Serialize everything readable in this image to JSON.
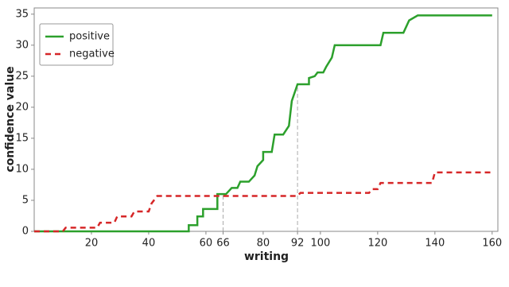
{
  "chart_data": {
    "type": "line",
    "xlabel": "writing",
    "ylabel": "confidence value",
    "xlim": [
      0,
      162
    ],
    "ylim": [
      0,
      36
    ],
    "xticks": [
      20,
      40,
      60,
      66,
      80,
      92,
      100,
      120,
      140,
      160
    ],
    "yticks": [
      0,
      5,
      10,
      15,
      20,
      25,
      30,
      35
    ],
    "guides": [
      66,
      92
    ],
    "legend": "upper-left",
    "series": [
      {
        "name": "positive",
        "color": "#2ca02c",
        "dash": false,
        "x": [
          0,
          54,
          54,
          57,
          57,
          59,
          59,
          64,
          64,
          67,
          69,
          71,
          72,
          75,
          77,
          78,
          80,
          80,
          83,
          84,
          87,
          89,
          90,
          92,
          96,
          96,
          98,
          99,
          101,
          102,
          104,
          105,
          121,
          122,
          129,
          130,
          131,
          134,
          160
        ],
        "values": [
          0,
          0,
          1,
          1,
          2.4,
          2.4,
          3.6,
          3.6,
          6,
          6,
          7,
          7,
          8,
          8,
          9,
          10.5,
          11.5,
          12.8,
          12.8,
          15.6,
          15.6,
          17,
          21,
          23.7,
          23.7,
          24.7,
          25,
          25.6,
          25.6,
          26.5,
          28,
          30,
          30,
          32,
          32,
          33,
          34,
          34.8,
          34.8
        ]
      },
      {
        "name": "negative",
        "color": "#d62728",
        "dash": true,
        "x": [
          0,
          10,
          11,
          22,
          23,
          28,
          29,
          34,
          35,
          40,
          41,
          43,
          92,
          93,
          117,
          118,
          120,
          121,
          139,
          140,
          160
        ],
        "values": [
          0,
          0,
          0.6,
          0.6,
          1.4,
          1.4,
          2.4,
          2.4,
          3.2,
          3.2,
          4.5,
          5.7,
          5.7,
          6.2,
          6.2,
          6.8,
          6.8,
          7.8,
          7.8,
          9.5,
          9.5
        ]
      }
    ]
  }
}
